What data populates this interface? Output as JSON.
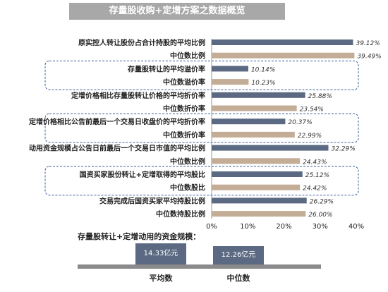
{
  "title": "存量股收购+定增方案之数据概览",
  "chart_data": {
    "type": "bar",
    "orientation": "horizontal",
    "categories": [
      "原实控人转让股份占合计持股的平均比例",
      "中位数比例",
      "存量股转让的平均溢价率",
      "中位数溢价率",
      "定增价格相比存量股转让价格的平均折价率",
      "中位数折价率",
      "定增价格相比公告前最后一个交易日收盘价的平均折价率",
      "中位数折价率",
      "动用资金规模占公告日前最后一个交易日市值的平均比例",
      "中位数比例",
      "国资买家股份转让+定增取得的平均股比",
      "中位数股比",
      "交易完成后国资买家平均持股比例",
      "中位数持股比例"
    ],
    "values": [
      39.12,
      39.49,
      10.14,
      10.23,
      25.88,
      23.54,
      20.37,
      22.99,
      32.29,
      24.43,
      25.12,
      24.42,
      26.29,
      26.0
    ],
    "value_labels": [
      "39.12%",
      "39.49%",
      "10.14%",
      "10.23%",
      "25.88%",
      "23.54%",
      "20.37%",
      "22.99%",
      "32.29%",
      "24.43%",
      "25.12%",
      "24.42%",
      "26.29%",
      "26.00%"
    ],
    "xlim": [
      0,
      40
    ],
    "xticks": [
      "0%",
      "10%",
      "20%",
      "30%",
      "40%"
    ],
    "colors": {
      "average": "#5b6a82",
      "median": "#c4ad96"
    },
    "highlighted_groups": [
      1,
      3,
      5
    ]
  },
  "capital_scale": {
    "label": "存量股转让+定增动用的资金规模：",
    "items": [
      {
        "name": "平均数",
        "value": "14.33亿元",
        "amount": 14.33
      },
      {
        "name": "中位数",
        "value": "12.26亿元",
        "amount": 12.26
      }
    ],
    "color": "#5b6a82"
  }
}
